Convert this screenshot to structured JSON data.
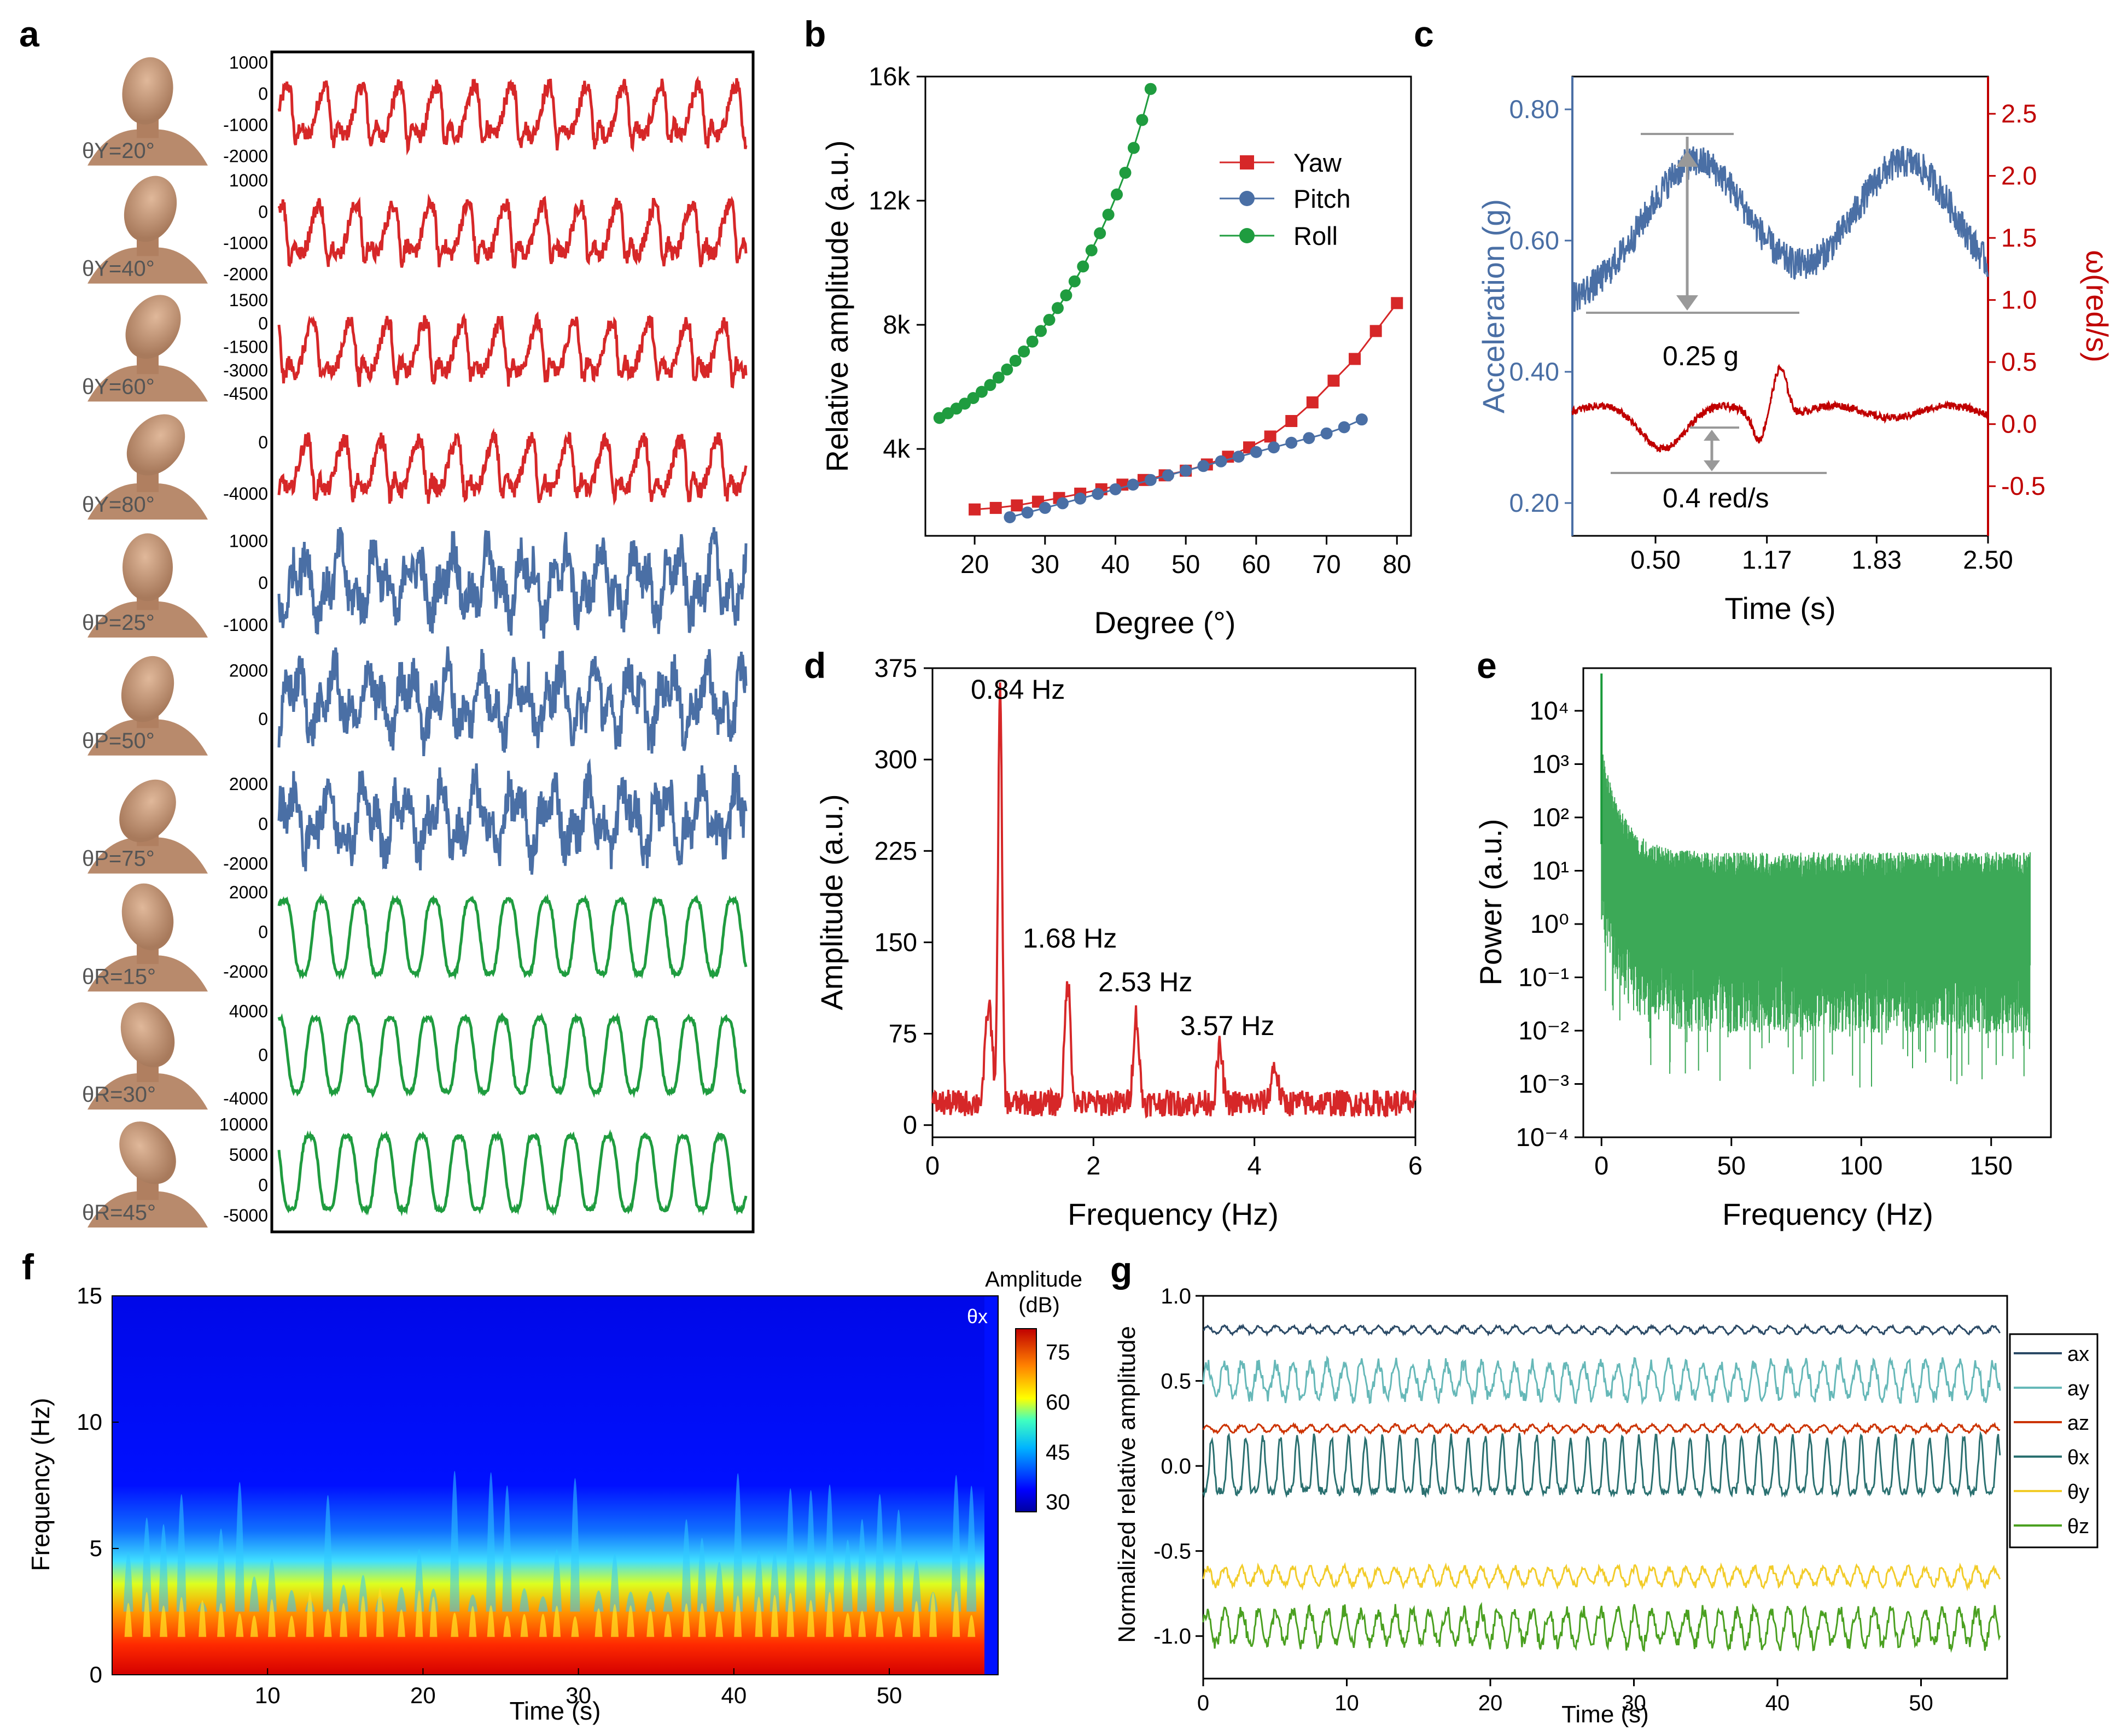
{
  "panel_labels": [
    "a",
    "b",
    "c",
    "d",
    "e",
    "f",
    "g"
  ],
  "colors": {
    "yaw": "#d62728",
    "pitch": "#4a6fa5",
    "roll": "#1f9c3f",
    "skin": "#c89a7c",
    "ax": "#2b4a66",
    "ay": "#66b8b8",
    "az": "#cc3300",
    "thx": "#2a7070",
    "thy": "#f2cc29",
    "thz": "#4aa020",
    "blue_axis": "#4a6fa5",
    "red_axis": "#c00000"
  },
  "panel_a": {
    "rows": [
      {
        "label": "θY=20°",
        "color": "red",
        "ticks": [
          "1000",
          "0",
          "-1000",
          "-2000"
        ],
        "ylim": [
          -2300,
          1200
        ],
        "head": "head-yaw-20"
      },
      {
        "label": "θY=40°",
        "color": "red",
        "ticks": [
          "1000",
          "0",
          "-1000",
          "-2000"
        ],
        "ylim": [
          -2300,
          1200
        ],
        "head": "head-yaw-40"
      },
      {
        "label": "θY=60°",
        "color": "red",
        "ticks": [
          "1500",
          "0",
          "-1500",
          "-3000",
          "-4500"
        ],
        "ylim": [
          -5000,
          2000
        ],
        "head": "head-yaw-60"
      },
      {
        "label": "θY=80°",
        "color": "red",
        "ticks": [
          "0",
          "-4000"
        ],
        "ylim": [
          -6000,
          2500
        ],
        "head": "head-yaw-80"
      },
      {
        "label": "θP=25°",
        "color": "blue",
        "ticks": [
          "1000",
          "0",
          "-1000"
        ],
        "ylim": [
          -1300,
          1300
        ],
        "head": "head-pitch-25"
      },
      {
        "label": "θP=50°",
        "color": "blue",
        "ticks": [
          "2000",
          "0"
        ],
        "ylim": [
          -1500,
          3000
        ],
        "head": "head-pitch-50"
      },
      {
        "label": "θP=75°",
        "color": "blue",
        "ticks": [
          "2000",
          "0",
          "-2000"
        ],
        "ylim": [
          -2500,
          3000
        ],
        "head": "head-pitch-75"
      },
      {
        "label": "θR=15°",
        "color": "green",
        "ticks": [
          "2000",
          "0",
          "-2000"
        ],
        "ylim": [
          -3000,
          2500
        ],
        "head": "head-roll-15"
      },
      {
        "label": "θR=30°",
        "color": "green",
        "ticks": [
          "4000",
          "0",
          "-4000"
        ],
        "ylim": [
          -5000,
          5000
        ],
        "head": "head-roll-30"
      },
      {
        "label": "θR=45°",
        "color": "green",
        "ticks": [
          "10000",
          "5000",
          "0",
          "-5000"
        ],
        "ylim": [
          -7000,
          11000
        ],
        "head": "head-roll-45"
      }
    ]
  },
  "chart_data": [
    {
      "panel": "b",
      "type": "line",
      "xlabel": "Degree (°)",
      "ylabel": "Relative amplitude (a.u.)",
      "xlim": [
        13,
        82
      ],
      "ylim": [
        1200,
        16000
      ],
      "xticks": [
        "20",
        "30",
        "40",
        "50",
        "60",
        "70",
        "80"
      ],
      "yticks": [
        "4k",
        "8k",
        "12k",
        "16k"
      ],
      "legend_position": "top-right",
      "series": [
        {
          "name": "Yaw",
          "x": [
            20,
            23,
            26,
            29,
            32,
            35,
            38,
            41,
            44,
            47,
            50,
            53,
            56,
            59,
            62,
            65,
            68,
            71,
            74,
            77,
            80
          ],
          "y": [
            2050,
            2100,
            2180,
            2300,
            2420,
            2560,
            2700,
            2850,
            3000,
            3150,
            3300,
            3500,
            3750,
            4050,
            4400,
            4900,
            5500,
            6200,
            6900,
            7800,
            8700
          ]
        },
        {
          "name": "Pitch",
          "x": [
            25,
            27.5,
            30,
            32.5,
            35,
            37.5,
            40,
            42.5,
            45,
            47.5,
            50,
            52.5,
            55,
            57.5,
            60,
            62.5,
            65,
            67.5,
            70,
            72.5,
            75
          ],
          "y": [
            1800,
            1950,
            2100,
            2250,
            2400,
            2550,
            2700,
            2850,
            3000,
            3150,
            3300,
            3450,
            3600,
            3750,
            3900,
            4050,
            4200,
            4350,
            4500,
            4700,
            4950
          ]
        },
        {
          "name": "Roll",
          "x": [
            15,
            16.2,
            17.4,
            18.6,
            19.8,
            21,
            22.2,
            23.4,
            24.6,
            25.8,
            27,
            28.2,
            29.4,
            30.6,
            31.8,
            33,
            34.2,
            35.4,
            36.6,
            37.8,
            39,
            40.2,
            41.4,
            42.6,
            43.8,
            45
          ],
          "y": [
            5000,
            5150,
            5300,
            5460,
            5640,
            5840,
            6060,
            6300,
            6560,
            6840,
            7140,
            7460,
            7800,
            8160,
            8540,
            8950,
            9400,
            9880,
            10400,
            10950,
            11550,
            12200,
            12900,
            13700,
            14600,
            15600
          ]
        }
      ]
    },
    {
      "panel": "c",
      "type": "line",
      "xlabel": "Time (s)",
      "ylabel_left": "Acceleration (g)",
      "ylabel_right": "ω(red/s)",
      "xticks": [
        "0.50",
        "1.17",
        "1.83",
        "2.50"
      ],
      "yticks_left": [
        "0.20",
        "0.40",
        "0.60",
        "0.80"
      ],
      "yticks_right": [
        "-0.5",
        "0.0",
        "0.5",
        "1.0",
        "1.5",
        "2.0",
        "2.5"
      ],
      "xlim": [
        0,
        2.5
      ],
      "ylim_left": [
        0.15,
        0.85
      ],
      "ylim_right": [
        -0.9,
        2.8
      ],
      "annotations": [
        "0.25 g",
        "0.4 red/s"
      ]
    },
    {
      "panel": "d",
      "type": "line",
      "xlabel": "Frequency (Hz)",
      "ylabel": "Amplitude (a.u.)",
      "xlim": [
        0,
        6
      ],
      "ylim": [
        -10,
        375
      ],
      "xticks": [
        "0",
        "2",
        "4",
        "6"
      ],
      "yticks": [
        "0",
        "75",
        "150",
        "225",
        "300",
        "375"
      ],
      "peaks": [
        {
          "x": 0.84,
          "y": 338,
          "label": "0.84 Hz"
        },
        {
          "x": 1.68,
          "y": 100,
          "label": "1.68 Hz"
        },
        {
          "x": 2.53,
          "y": 72,
          "label": "2.53 Hz"
        },
        {
          "x": 3.57,
          "y": 45,
          "label": "3.57 Hz"
        }
      ]
    },
    {
      "panel": "e",
      "type": "line",
      "log_y": true,
      "xlabel": "Frequency (Hz)",
      "ylabel": "Power (a.u.)",
      "xlim": [
        -7,
        173
      ],
      "ylim_exp": [
        -4,
        4.8
      ],
      "xticks": [
        "0",
        "50",
        "100",
        "150"
      ],
      "yticks": [
        "10⁻⁴",
        "10⁻³",
        "10⁻²",
        "10⁻¹",
        "10⁰",
        "10¹",
        "10²",
        "10³",
        "10⁴"
      ]
    },
    {
      "panel": "f",
      "type": "heatmap",
      "xlabel": "Time (s)",
      "ylabel": "Frequency (Hz)",
      "xlim": [
        0,
        57
      ],
      "ylim": [
        0,
        15
      ],
      "xticks": [
        "10",
        "20",
        "30",
        "40",
        "50"
      ],
      "yticks": [
        "0",
        "5",
        "10",
        "15"
      ],
      "colorbar_title": "Amplitude",
      "colorbar_unit": "(dB)",
      "colorbar_ticks": [
        "30",
        "45",
        "60",
        "75"
      ],
      "corner_label": "θx"
    },
    {
      "panel": "g",
      "type": "line",
      "xlabel": "Time (s)",
      "ylabel": "Normalized relative amplitude",
      "xlim": [
        0,
        56
      ],
      "ylim": [
        -1.25,
        1.0
      ],
      "xticks": [
        "0",
        "10",
        "20",
        "30",
        "40",
        "50"
      ],
      "yticks": [
        "1.0",
        "0.5",
        "0.0",
        "-0.5",
        "-1.0"
      ],
      "legend_position": "right",
      "series": [
        {
          "name": "ax",
          "offset": 0.8,
          "amp": 0.02
        },
        {
          "name": "ay",
          "offset": 0.5,
          "amp": 0.1
        },
        {
          "name": "az",
          "offset": 0.22,
          "amp": 0.02
        },
        {
          "name": "θx",
          "offset": -0.05,
          "amp": 0.25
        },
        {
          "name": "θy",
          "offset": -0.65,
          "amp": 0.05
        },
        {
          "name": "θz",
          "offset": -0.95,
          "amp": 0.1
        }
      ]
    }
  ]
}
